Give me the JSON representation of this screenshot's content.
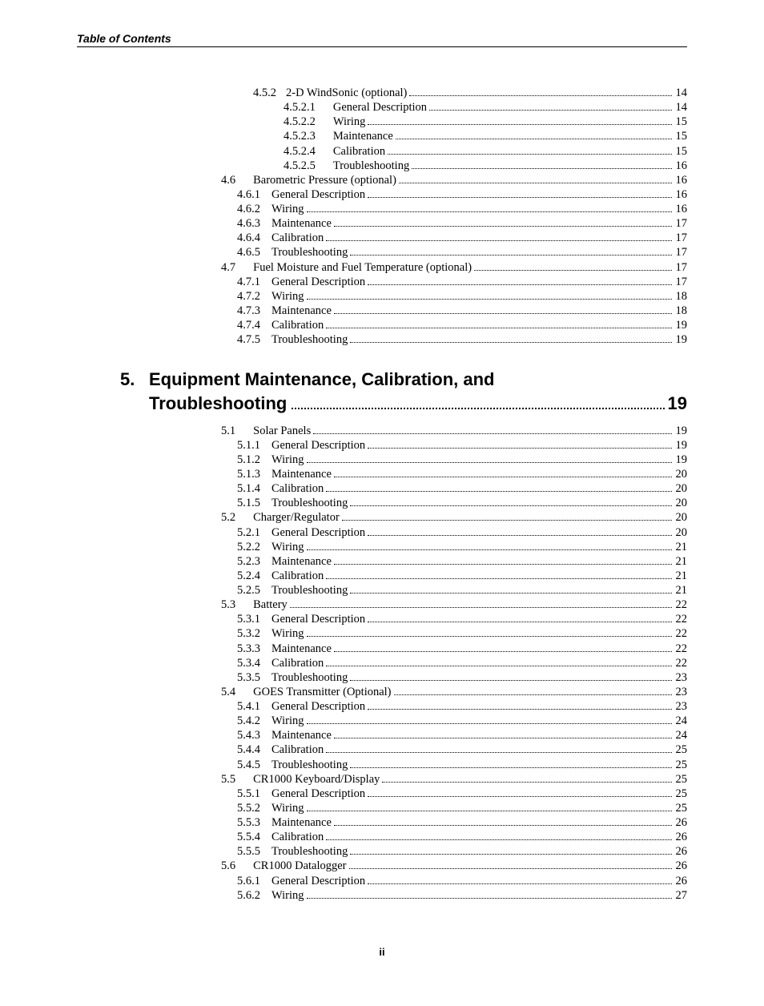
{
  "running_head": "Table of Contents",
  "footer_page": "ii",
  "chapter": {
    "num": "5.",
    "line1": "Equipment Maintenance, Calibration, and",
    "line2": "Troubleshooting",
    "page": "19"
  },
  "upper": [
    {
      "lvl": "a",
      "num": "4.5.2",
      "title": "2-D WindSonic (optional)",
      "page": "14"
    },
    {
      "lvl": "b",
      "num": "4.5.2.1",
      "title": "General Description",
      "page": "14"
    },
    {
      "lvl": "b",
      "num": "4.5.2.2",
      "title": "Wiring",
      "page": "15"
    },
    {
      "lvl": "b",
      "num": "4.5.2.3",
      "title": "Maintenance",
      "page": "15"
    },
    {
      "lvl": "b",
      "num": "4.5.2.4",
      "title": "Calibration",
      "page": "15"
    },
    {
      "lvl": "b",
      "num": "4.5.2.5",
      "title": "Troubleshooting",
      "page": "16"
    },
    {
      "lvl": "c",
      "num": "4.6",
      "title": "Barometric Pressure (optional)",
      "page": "16"
    },
    {
      "lvl": "d",
      "num": "4.6.1",
      "title": "General Description",
      "page": "16"
    },
    {
      "lvl": "d",
      "num": "4.6.2",
      "title": "Wiring",
      "page": "16"
    },
    {
      "lvl": "d",
      "num": "4.6.3",
      "title": "Maintenance",
      "page": "17"
    },
    {
      "lvl": "d",
      "num": "4.6.4",
      "title": "Calibration",
      "page": "17"
    },
    {
      "lvl": "d",
      "num": "4.6.5",
      "title": "Troubleshooting",
      "page": "17"
    },
    {
      "lvl": "c",
      "num": "4.7",
      "title": "Fuel Moisture and Fuel Temperature (optional)",
      "page": "17"
    },
    {
      "lvl": "d",
      "num": "4.7.1",
      "title": "General Description",
      "page": "17"
    },
    {
      "lvl": "d",
      "num": "4.7.2",
      "title": "Wiring",
      "page": "18"
    },
    {
      "lvl": "d",
      "num": "4.7.3",
      "title": "Maintenance",
      "page": "18"
    },
    {
      "lvl": "d",
      "num": "4.7.4",
      "title": "Calibration",
      "page": "19"
    },
    {
      "lvl": "d",
      "num": "4.7.5",
      "title": "Troubleshooting",
      "page": "19"
    }
  ],
  "lower": [
    {
      "lvl": "c",
      "num": "5.1",
      "title": "Solar Panels",
      "page": "19"
    },
    {
      "lvl": "d",
      "num": "5.1.1",
      "title": "General Description",
      "page": "19"
    },
    {
      "lvl": "d",
      "num": "5.1.2",
      "title": "Wiring",
      "page": "19"
    },
    {
      "lvl": "d",
      "num": "5.1.3",
      "title": "Maintenance",
      "page": "20"
    },
    {
      "lvl": "d",
      "num": "5.1.4",
      "title": "Calibration",
      "page": "20"
    },
    {
      "lvl": "d",
      "num": "5.1.5",
      "title": "Troubleshooting",
      "page": "20"
    },
    {
      "lvl": "c",
      "num": "5.2",
      "title": "Charger/Regulator",
      "page": "20"
    },
    {
      "lvl": "d",
      "num": "5.2.1",
      "title": "General Description",
      "page": "20"
    },
    {
      "lvl": "d",
      "num": "5.2.2",
      "title": "Wiring",
      "page": "21"
    },
    {
      "lvl": "d",
      "num": "5.2.3",
      "title": "Maintenance",
      "page": "21"
    },
    {
      "lvl": "d",
      "num": "5.2.4",
      "title": "Calibration",
      "page": "21"
    },
    {
      "lvl": "d",
      "num": "5.2.5",
      "title": "Troubleshooting",
      "page": "21"
    },
    {
      "lvl": "c",
      "num": "5.3",
      "title": "Battery",
      "page": "22"
    },
    {
      "lvl": "d",
      "num": "5.3.1",
      "title": "General Description",
      "page": "22"
    },
    {
      "lvl": "d",
      "num": "5.3.2",
      "title": "Wiring",
      "page": "22"
    },
    {
      "lvl": "d",
      "num": "5.3.3",
      "title": "Maintenance",
      "page": "22"
    },
    {
      "lvl": "d",
      "num": "5.3.4",
      "title": "Calibration",
      "page": "22"
    },
    {
      "lvl": "d",
      "num": "5.3.5",
      "title": "Troubleshooting",
      "page": "23"
    },
    {
      "lvl": "c",
      "num": "5.4",
      "title": "GOES Transmitter (Optional)",
      "page": "23"
    },
    {
      "lvl": "d",
      "num": "5.4.1",
      "title": "General Description",
      "page": "23"
    },
    {
      "lvl": "d",
      "num": "5.4.2",
      "title": "Wiring",
      "page": "24"
    },
    {
      "lvl": "d",
      "num": "5.4.3",
      "title": "Maintenance",
      "page": "24"
    },
    {
      "lvl": "d",
      "num": "5.4.4",
      "title": "Calibration",
      "page": "25"
    },
    {
      "lvl": "d",
      "num": "5.4.5",
      "title": "Troubleshooting",
      "page": "25"
    },
    {
      "lvl": "c",
      "num": "5.5",
      "title": "CR1000 Keyboard/Display",
      "page": "25"
    },
    {
      "lvl": "d",
      "num": "5.5.1",
      "title": "General Description",
      "page": "25"
    },
    {
      "lvl": "d",
      "num": "5.5.2",
      "title": "Wiring",
      "page": "25"
    },
    {
      "lvl": "d",
      "num": "5.5.3",
      "title": "Maintenance",
      "page": "26"
    },
    {
      "lvl": "d",
      "num": "5.5.4",
      "title": "Calibration",
      "page": "26"
    },
    {
      "lvl": "d",
      "num": "5.5.5",
      "title": "Troubleshooting",
      "page": "26"
    },
    {
      "lvl": "c",
      "num": "5.6",
      "title": "CR1000 Datalogger",
      "page": "26"
    },
    {
      "lvl": "d",
      "num": "5.6.1",
      "title": "General Description",
      "page": "26"
    },
    {
      "lvl": "d",
      "num": "5.6.2",
      "title": "Wiring",
      "page": "27"
    }
  ]
}
